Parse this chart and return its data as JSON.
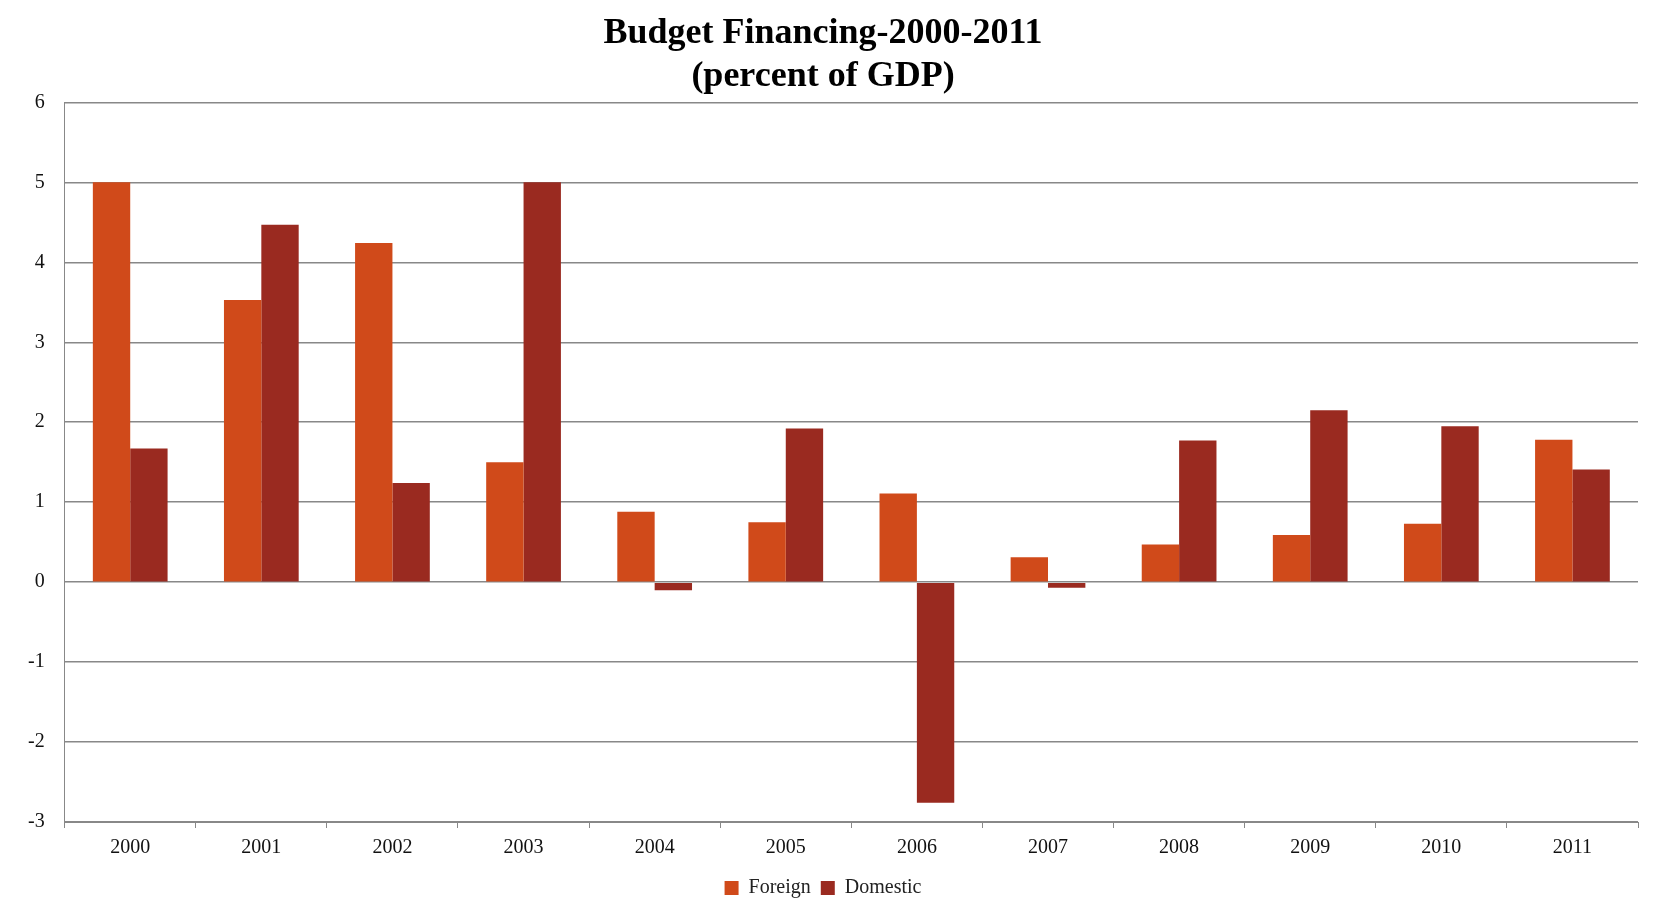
{
  "chart_data": {
    "type": "bar",
    "title": [
      "Budget Financing-2000-2011",
      "(percent of GDP)"
    ],
    "categories": [
      "2000",
      "2001",
      "2002",
      "2003",
      "2004",
      "2005",
      "2006",
      "2007",
      "2008",
      "2009",
      "2010",
      "2011"
    ],
    "series": [
      {
        "name": "Foreign",
        "color": "#d04a1a",
        "values": [
          5.0,
          3.53,
          4.24,
          1.5,
          0.88,
          0.75,
          1.11,
          0.31,
          0.47,
          0.59,
          0.73,
          1.78
        ]
      },
      {
        "name": "Domestic",
        "color": "#9a2a20",
        "values": [
          1.67,
          4.47,
          1.24,
          5.0,
          -0.1,
          1.92,
          -2.76,
          -0.07,
          1.77,
          2.15,
          1.95,
          1.41
        ]
      }
    ],
    "ylim": [
      -3,
      6
    ],
    "yticks": [
      -3,
      -2,
      -1,
      0,
      1,
      2,
      3,
      4,
      5,
      6
    ],
    "grid": "y",
    "legend": "bottom"
  }
}
